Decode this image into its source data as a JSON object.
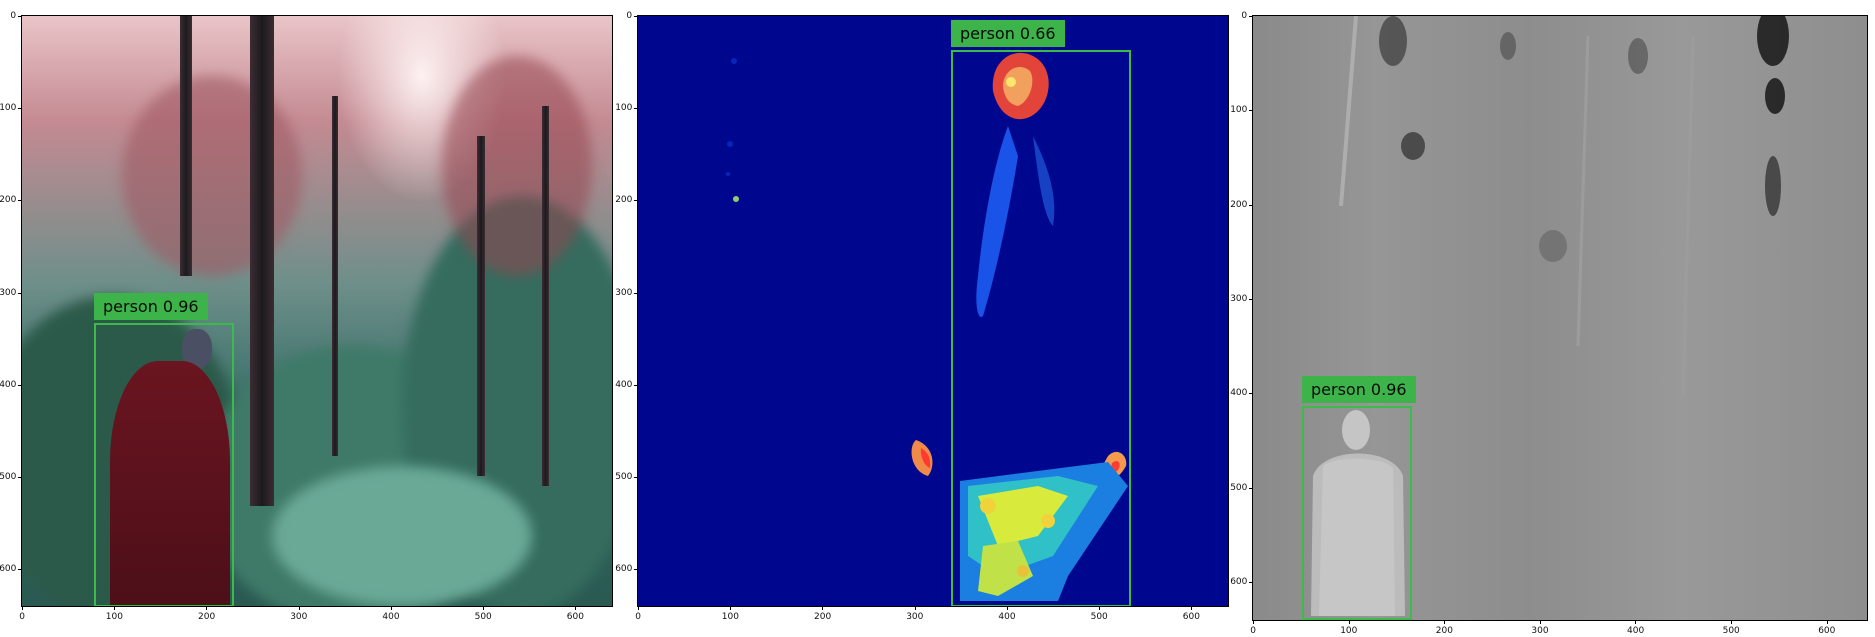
{
  "panels": [
    {
      "name": "rgb",
      "x_ticks": [
        "0",
        "100",
        "200",
        "300",
        "400",
        "500",
        "600"
      ],
      "y_ticks": [
        "0",
        "100",
        "200",
        "300",
        "400",
        "500",
        "600"
      ],
      "detections": [
        {
          "label": "person 0.96",
          "class": "person",
          "score": 0.96
        }
      ]
    },
    {
      "name": "thermal-color",
      "x_ticks": [
        "0",
        "100",
        "200",
        "300",
        "400",
        "500",
        "600"
      ],
      "y_ticks": [
        "0",
        "100",
        "200",
        "300",
        "400",
        "500",
        "600"
      ],
      "detections": [
        {
          "label": "person 0.66",
          "class": "person",
          "score": 0.66
        }
      ]
    },
    {
      "name": "thermal-gray",
      "x_ticks": [
        "0",
        "100",
        "200",
        "300",
        "400",
        "500",
        "600"
      ],
      "y_ticks": [
        "0",
        "100",
        "200",
        "300",
        "400",
        "500",
        "600"
      ],
      "detections": [
        {
          "label": "person 0.96",
          "class": "person",
          "score": 0.96
        }
      ]
    }
  ],
  "colors": {
    "bbox": "#3dbb4a",
    "label_bg": "#3db44a",
    "thermal_background": "#00078f"
  }
}
